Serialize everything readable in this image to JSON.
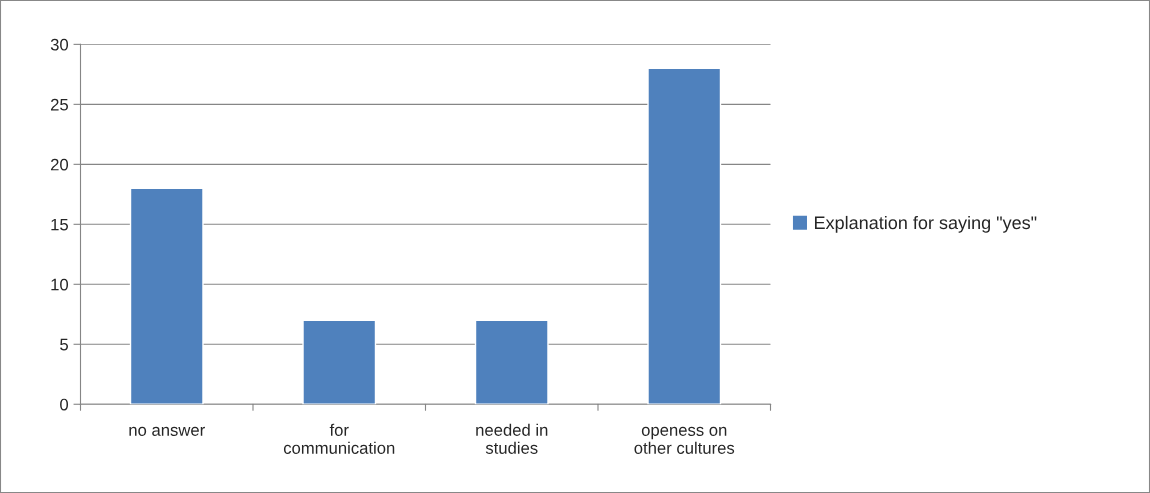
{
  "chart_data": {
    "type": "bar",
    "categories": [
      "no answer",
      "for\ncommunication",
      "needed in\nstudies",
      "openess on\nother cultures"
    ],
    "series": [
      {
        "name": "Explanation for saying \"yes\"",
        "color": "#4f81bd",
        "values": [
          18,
          7,
          7,
          28
        ]
      }
    ],
    "ylim": [
      0,
      30
    ],
    "yticks": [
      0,
      5,
      10,
      15,
      20,
      25,
      30
    ],
    "grid": "y",
    "legend": "right"
  }
}
